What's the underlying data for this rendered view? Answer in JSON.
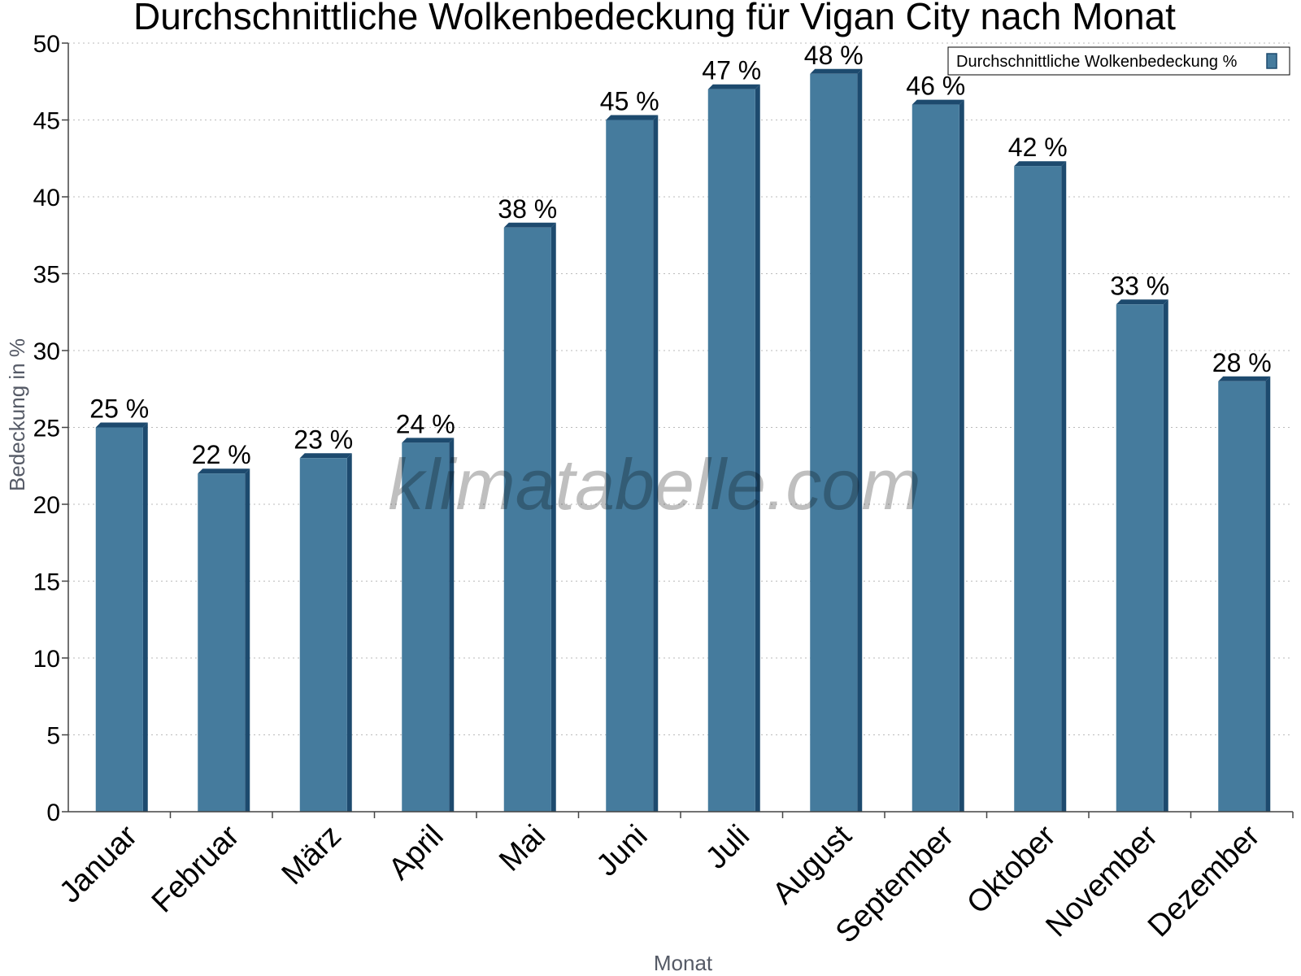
{
  "chart_data": {
    "type": "bar",
    "title": "Durchschnittliche Wolkenbedeckung für Vigan City nach Monat",
    "xlabel": "Monat",
    "ylabel": "Bedeckung in %",
    "categories": [
      "Januar",
      "Februar",
      "März",
      "April",
      "Mai",
      "Juni",
      "Juli",
      "August",
      "September",
      "Oktober",
      "November",
      "Dezember"
    ],
    "series": [
      {
        "name": "Durchschnittliche Wolkenbedeckung %",
        "values": [
          25,
          22,
          23,
          24,
          38,
          45,
          47,
          48,
          46,
          42,
          33,
          28
        ],
        "labels": [
          "25 %",
          "22 %",
          "23 %",
          "24 %",
          "38 %",
          "45 %",
          "47 %",
          "48 %",
          "46 %",
          "42 %",
          "33 %",
          "28 %"
        ]
      }
    ],
    "ylim": [
      0,
      50
    ],
    "yticks": [
      0,
      5,
      10,
      15,
      20,
      25,
      30,
      35,
      40,
      45,
      50
    ],
    "grid": true,
    "legend_position": "top-right",
    "colors": {
      "bar": "#457b9d",
      "bar_edge": "#1d4a6e",
      "grid": "#bbbbbb",
      "axis": "#444444"
    },
    "watermark": "klimatabelle.com"
  }
}
